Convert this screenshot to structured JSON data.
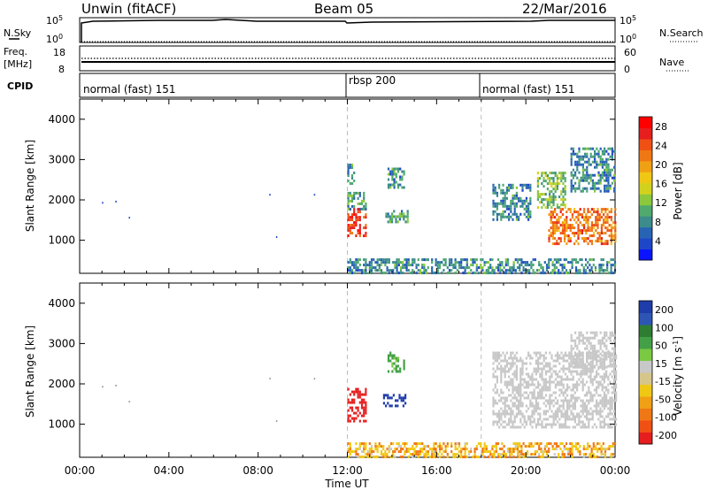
{
  "header": {
    "station": "Unwin (fitACF)",
    "beam": "Beam 05",
    "date": "22/Mar/2016"
  },
  "status_panels": {
    "nsky_label": "N.Sky",
    "nsky_ticks": [
      "10^5",
      "10^0"
    ],
    "nsearch_label": "N.Search",
    "nsearch_ticks": [
      "10^5",
      "10^0"
    ],
    "freq_label_1": "Freq.",
    "freq_label_2": "[MHz]",
    "freq_ticks": [
      "18",
      "8"
    ],
    "nave_label": "Nave",
    "nave_ticks": [
      "60",
      "0"
    ],
    "cpid_label": "CPID",
    "cpid_segments": [
      {
        "label": "normal (fast) 151",
        "start_h": 0,
        "end_h": 12
      },
      {
        "label": "rbsp 200",
        "start_h": 12,
        "end_h": 18
      },
      {
        "label": "normal (fast) 151",
        "start_h": 18,
        "end_h": 24
      }
    ]
  },
  "chart_data": [
    {
      "type": "heatmap",
      "title": "",
      "xlabel": "Time UT",
      "ylabel": "Slant Range [km]",
      "x_ticks": [
        "00:00",
        "04:00",
        "08:00",
        "12:00",
        "16:00",
        "20:00",
        "00:00"
      ],
      "xlim_hours": [
        0,
        24
      ],
      "ylim": [
        180,
        4500
      ],
      "y_ticks": [
        1000,
        2000,
        3000,
        4000
      ],
      "colorbar": {
        "label": "Power [dB]",
        "ticks": [
          4,
          8,
          12,
          16,
          20,
          24,
          28
        ],
        "range": [
          0,
          30
        ],
        "colors": [
          "#0a14ff",
          "#1e46c8",
          "#2864b4",
          "#3c8c8c",
          "#50aa6e",
          "#8cc83c",
          "#d2d21e",
          "#f0c814",
          "#f0a014",
          "#f07814",
          "#f05014",
          "#e61e1e",
          "#ff0000"
        ]
      },
      "regions": [
        {
          "t0": 12.0,
          "t1": 12.8,
          "r0": 1100,
          "r1": 1800,
          "value": 26
        },
        {
          "t0": 12.0,
          "t1": 12.8,
          "r0": 1800,
          "r1": 2200,
          "value": 10
        },
        {
          "t0": 12.0,
          "t1": 12.3,
          "r0": 2400,
          "r1": 2900,
          "value": 8
        },
        {
          "t0": 13.7,
          "t1": 14.7,
          "r0": 1450,
          "r1": 1750,
          "value": 10
        },
        {
          "t0": 13.8,
          "t1": 14.5,
          "r0": 2300,
          "r1": 2800,
          "value": 8
        },
        {
          "t0": 18.5,
          "t1": 20.2,
          "r0": 1500,
          "r1": 2400,
          "value": 8
        },
        {
          "t0": 21.0,
          "t1": 24.0,
          "r0": 900,
          "r1": 1800,
          "value": 22
        },
        {
          "t0": 20.5,
          "t1": 21.8,
          "r0": 1800,
          "r1": 2700,
          "value": 12
        },
        {
          "t0": 22.0,
          "t1": 24.0,
          "r0": 2200,
          "r1": 3300,
          "value": 8
        },
        {
          "t0": 12.0,
          "t1": 24.0,
          "r0": 200,
          "r1": 550,
          "value": 8
        }
      ]
    },
    {
      "type": "heatmap",
      "title": "",
      "xlabel": "Time UT",
      "ylabel": "Slant Range [km]",
      "x_ticks": [
        "00:00",
        "04:00",
        "08:00",
        "12:00",
        "16:00",
        "20:00",
        "00:00"
      ],
      "xlim_hours": [
        0,
        24
      ],
      "ylim": [
        180,
        4500
      ],
      "y_ticks": [
        1000,
        2000,
        3000,
        4000
      ],
      "colorbar": {
        "label": "Velocity [m s^-1]",
        "ticks": [
          "200",
          "100",
          "50",
          "15",
          "-15",
          "-50",
          "-100",
          "-200"
        ],
        "colors": [
          "#1e3caa",
          "#2d55b4",
          "#2e7d32",
          "#43a047",
          "#7ac943",
          "#c8c8c8",
          "#d6c68a",
          "#f0c814",
          "#f0a014",
          "#f07814",
          "#f05014",
          "#e61e1e"
        ]
      },
      "regions": [
        {
          "t0": 12.0,
          "t1": 12.8,
          "r0": 1100,
          "r1": 1900,
          "value": -180
        },
        {
          "t0": 13.6,
          "t1": 14.6,
          "r0": 1450,
          "r1": 1750,
          "value": 180
        },
        {
          "t0": 13.8,
          "t1": 14.5,
          "r0": 2300,
          "r1": 2800,
          "value": 60
        },
        {
          "t0": 18.5,
          "t1": 24.0,
          "r0": 900,
          "r1": 2800,
          "value": 0
        },
        {
          "t0": 22.0,
          "t1": 24.0,
          "r0": 2400,
          "r1": 3300,
          "value": 0
        },
        {
          "t0": 12.0,
          "t1": 24.0,
          "r0": 200,
          "r1": 550,
          "value": -40
        }
      ]
    }
  ]
}
